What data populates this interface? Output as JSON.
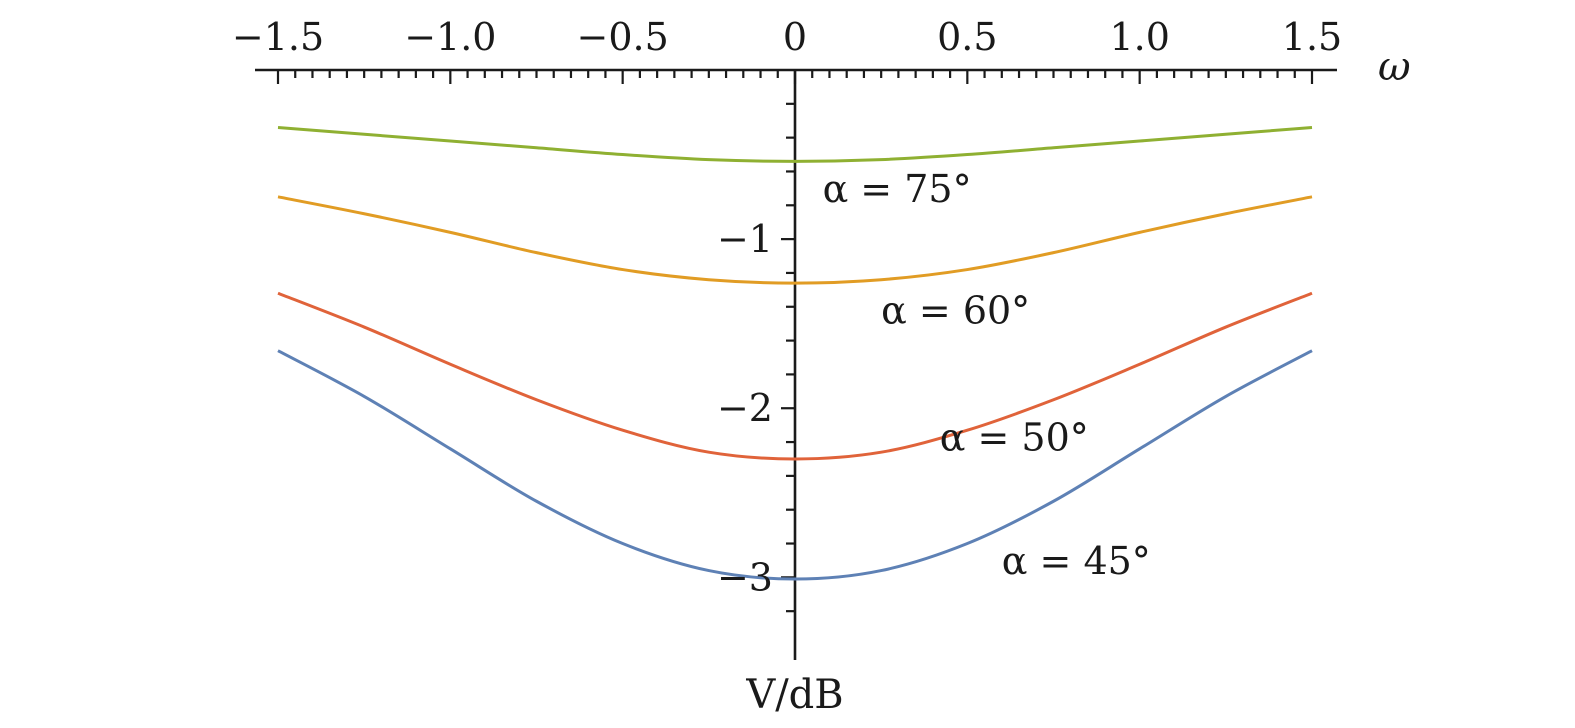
{
  "chart_data": {
    "type": "line",
    "title": "",
    "xlabel": "ω",
    "ylabel": "V/dB",
    "xlim": [
      -1.5,
      1.5
    ],
    "ylim": [
      -3.4,
      0
    ],
    "x_axis_position": "top",
    "y_axis_position": "center",
    "grid": false,
    "legend": "none",
    "x_ticks": [
      -1.5,
      -1.0,
      -0.5,
      0,
      0.5,
      1.0,
      1.5
    ],
    "x_tick_labels": [
      "−1.5",
      "−1.0",
      "−0.5",
      "0",
      "0.5",
      "1.0",
      "1.5"
    ],
    "y_ticks": [
      -1,
      -2,
      -3
    ],
    "y_tick_labels": [
      "−1",
      "−2",
      "−3"
    ],
    "x": [
      -1.5,
      -1.25,
      -1.0,
      -0.75,
      -0.5,
      -0.25,
      0,
      0.25,
      0.5,
      0.75,
      1.0,
      1.25,
      1.5
    ],
    "series": [
      {
        "color": "#5e81b5",
        "values": [
          -1.66,
          -1.93,
          -2.24,
          -2.55,
          -2.8,
          -2.96,
          -3.01,
          -2.96,
          -2.8,
          -2.55,
          -2.24,
          -1.93,
          -1.66
        ]
      },
      {
        "color": "#e0633a",
        "values": [
          -1.32,
          -1.52,
          -1.74,
          -1.95,
          -2.13,
          -2.26,
          -2.3,
          -2.26,
          -2.13,
          -1.95,
          -1.74,
          -1.52,
          -1.32
        ]
      },
      {
        "color": "#e19c24",
        "values": [
          -0.75,
          -0.85,
          -0.96,
          -1.08,
          -1.18,
          -1.24,
          -1.26,
          -1.24,
          -1.18,
          -1.08,
          -0.96,
          -0.85,
          -0.75
        ]
      },
      {
        "color": "#8fb032",
        "values": [
          -0.34,
          -0.38,
          -0.42,
          -0.46,
          -0.5,
          -0.53,
          -0.54,
          -0.53,
          -0.5,
          -0.46,
          -0.42,
          -0.38,
          -0.34
        ]
      }
    ],
    "annotations": [
      {
        "text": "α = 75°",
        "x": 0.08,
        "y": -0.78
      },
      {
        "text": "α = 60°",
        "x": 0.25,
        "y": -1.5
      },
      {
        "text": "α = 50°",
        "x": 0.42,
        "y": -2.25
      },
      {
        "text": "α = 45°",
        "x": 0.6,
        "y": -2.98
      }
    ]
  }
}
